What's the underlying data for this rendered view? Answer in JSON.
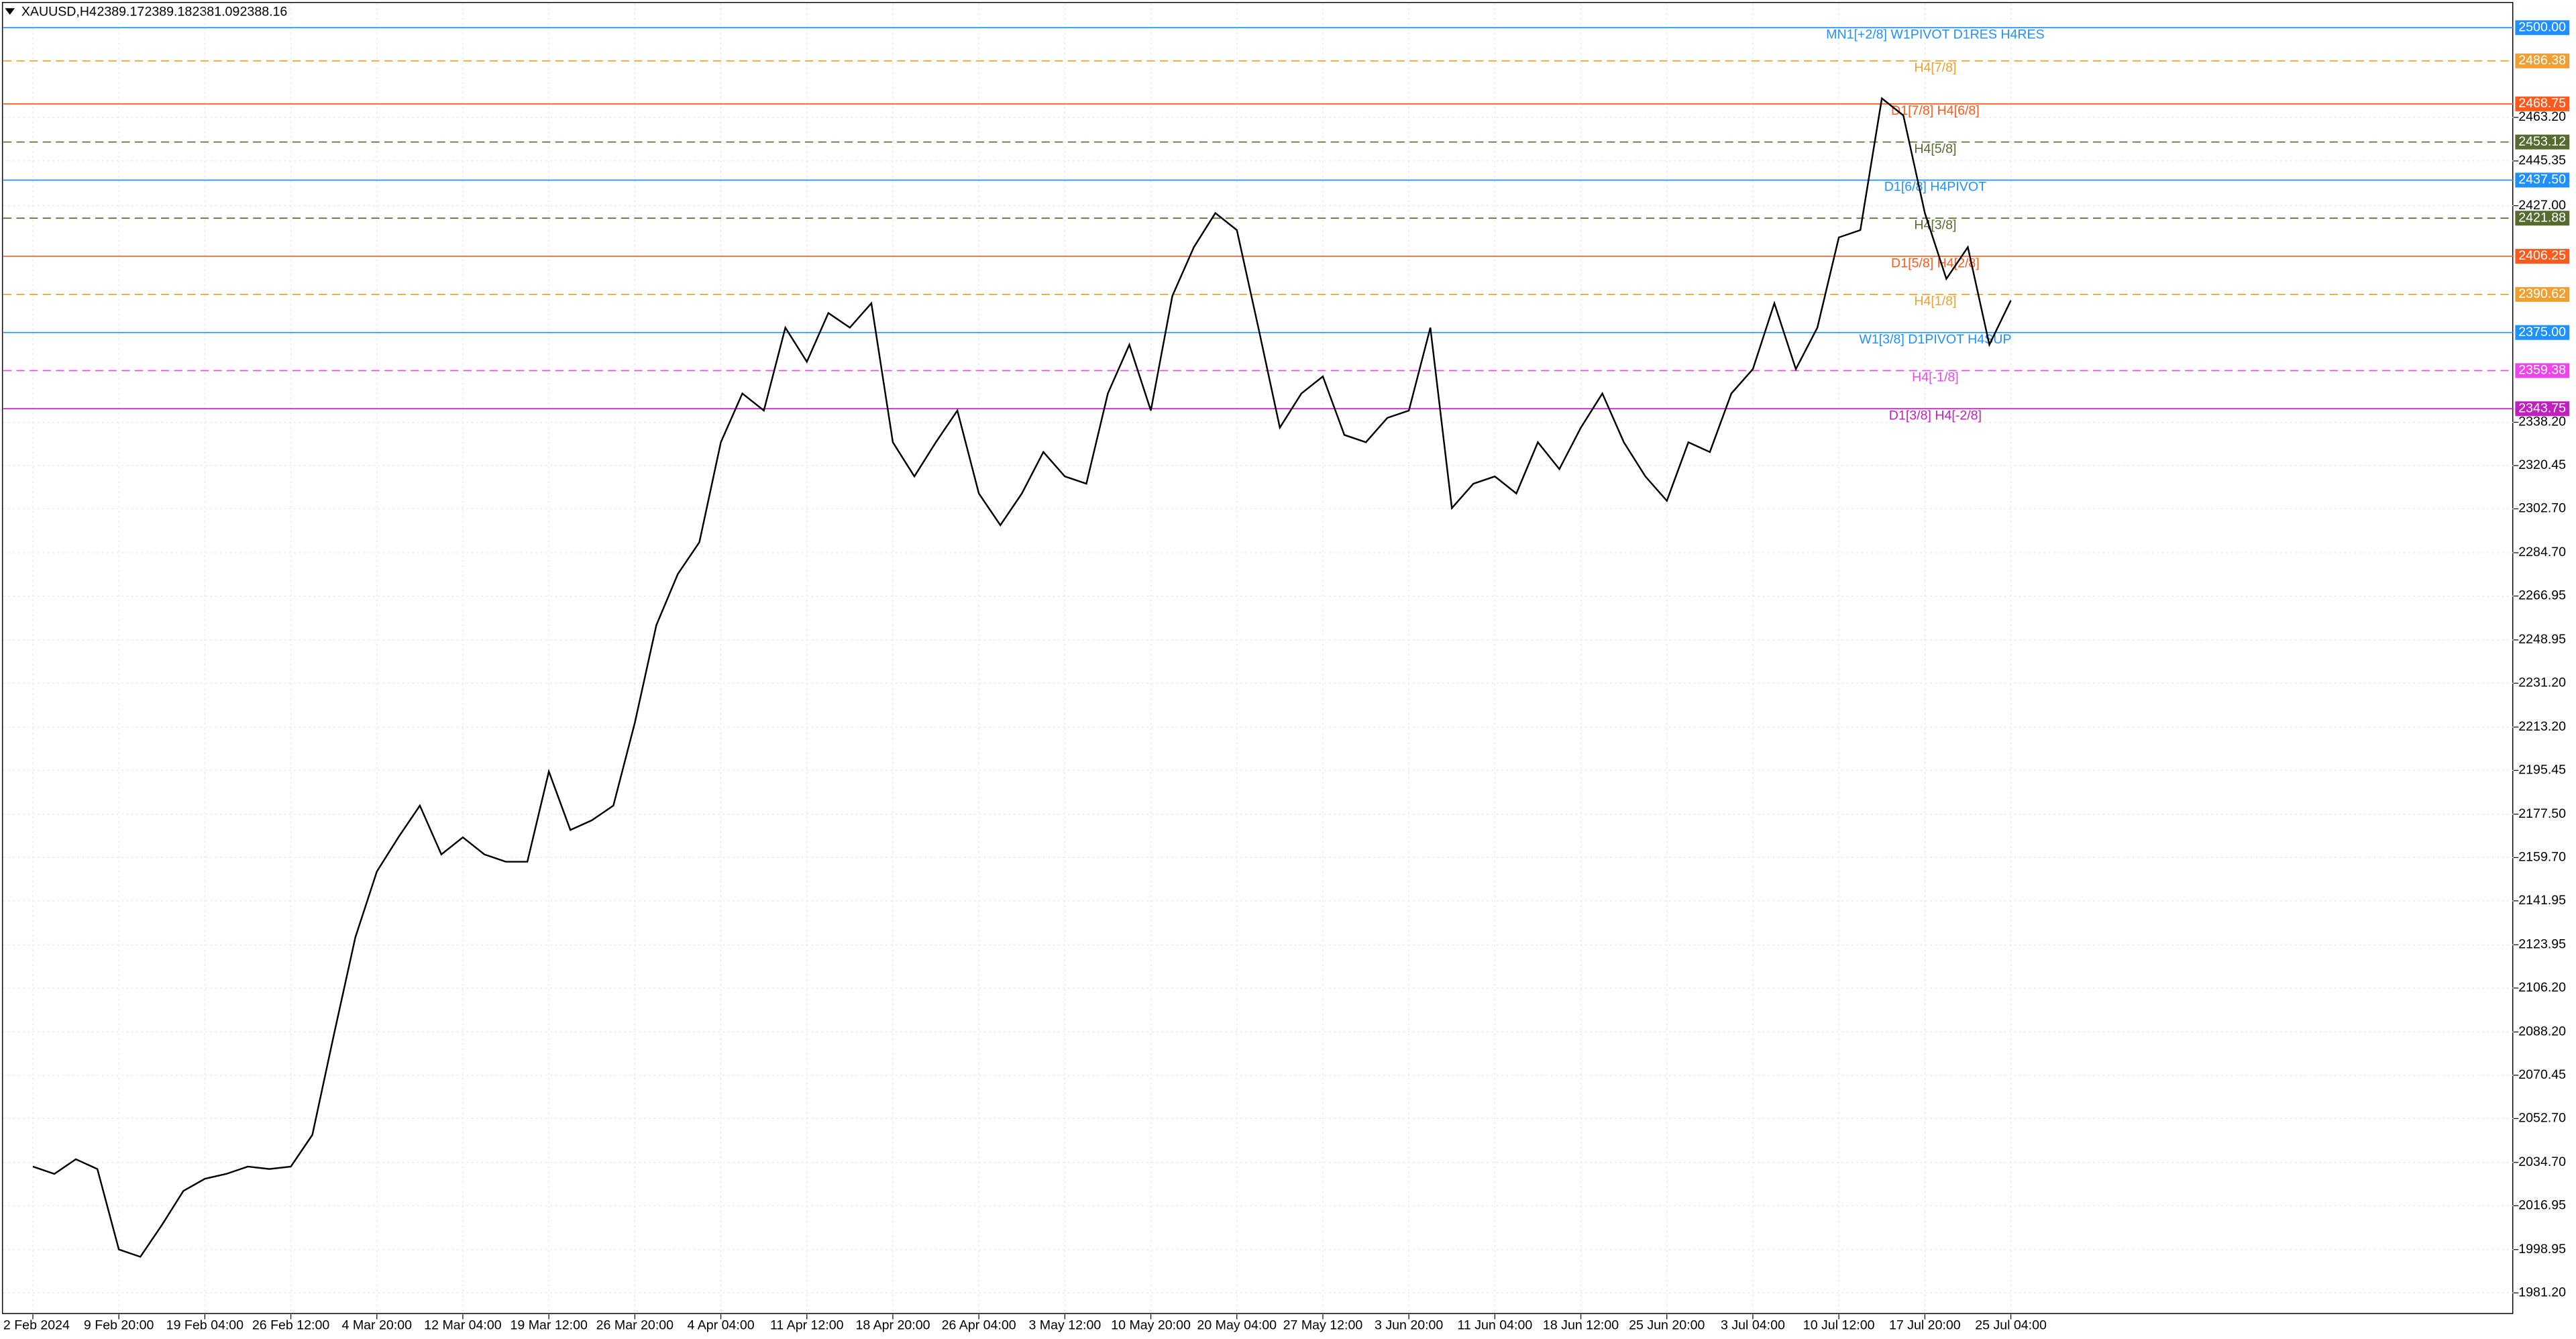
{
  "chart_data": {
    "type": "line",
    "symbol": "XAUUSD,H4",
    "ohlc": [
      2389.17,
      2389.18,
      2381.09,
      2388.16
    ],
    "color": "#000000",
    "categories": [
      "2 Feb 2024",
      null,
      null,
      null,
      "9 Feb 20:00",
      null,
      null,
      null,
      "19 Feb 04:00",
      null,
      null,
      null,
      "26 Feb 12:00",
      null,
      null,
      null,
      "4 Mar 20:00",
      null,
      null,
      null,
      "12 Mar 04:00",
      null,
      null,
      null,
      "19 Mar 12:00",
      null,
      null,
      null,
      "26 Mar 20:00",
      null,
      null,
      null,
      "4 Apr 04:00",
      null,
      null,
      null,
      "11 Apr 12:00",
      null,
      null,
      null,
      "18 Apr 20:00",
      null,
      null,
      null,
      "26 Apr 04:00",
      null,
      null,
      null,
      "3 May 12:00",
      null,
      null,
      null,
      "10 May 20:00",
      null,
      null,
      null,
      "20 May 04:00",
      null,
      null,
      null,
      "27 May 12:00",
      null,
      null,
      null,
      "3 Jun 20:00",
      null,
      null,
      null,
      "11 Jun 04:00",
      null,
      null,
      null,
      "18 Jun 12:00",
      null,
      null,
      null,
      "25 Jun 20:00",
      null,
      null,
      null,
      "3 Jul 04:00",
      null,
      null,
      null,
      "10 Jul 12:00",
      null,
      null,
      null,
      "17 Jul 20:00",
      null,
      null,
      null,
      "25 Jul 04:00"
    ],
    "values": [
      2033,
      2030,
      2036,
      2032,
      1999,
      1996,
      2009,
      2023,
      2028,
      2030,
      2033,
      2032,
      2033,
      2046,
      2087,
      2127,
      2154,
      2168,
      2181,
      2161,
      2168,
      2161,
      2158,
      2158,
      2195,
      2171,
      2175,
      2181,
      2215,
      2255,
      2276,
      2289,
      2330,
      2350,
      2343,
      2377,
      2363,
      2383,
      2377,
      2387,
      2330,
      2316,
      2330,
      2343,
      2309,
      2296,
      2309,
      2326,
      2316,
      2313,
      2350,
      2370,
      2343,
      2390,
      2410,
      2424,
      2417,
      2377,
      2336,
      2350,
      2357,
      2333,
      2330,
      2340,
      2343,
      2377,
      2303,
      2313,
      2316,
      2309,
      2330,
      2319,
      2336,
      2350,
      2330,
      2316,
      2306,
      2330,
      2326,
      2350,
      2360,
      2387,
      2360,
      2377,
      2414,
      2417,
      2471,
      2464,
      2424,
      2397,
      2410,
      2370,
      2388.16
    ],
    "ylim": [
      1972.4,
      2510
    ],
    "yticks": [
      {
        "value": 2463.2,
        "label": "2463.20"
      },
      {
        "value": 2445.35,
        "label": "2445.35"
      },
      {
        "value": 2427,
        "label": "2427.00"
      },
      {
        "value": 2338.2,
        "label": "2338.20"
      },
      {
        "value": 2320.45,
        "label": "2320.45"
      },
      {
        "value": 2302.7,
        "label": "2302.70"
      },
      {
        "value": 2284.7,
        "label": "2284.70"
      },
      {
        "value": 2266.95,
        "label": "2266.95"
      },
      {
        "value": 2248.95,
        "label": "2248.95"
      },
      {
        "value": 2231.2,
        "label": "2231.20"
      },
      {
        "value": 2213.2,
        "label": "2213.20"
      },
      {
        "value": 2195.45,
        "label": "2195.45"
      },
      {
        "value": 2177.5,
        "label": "2177.50"
      },
      {
        "value": 2159.7,
        "label": "2159.70"
      },
      {
        "value": 2141.95,
        "label": "2141.95"
      },
      {
        "value": 2123.95,
        "label": "2123.95"
      },
      {
        "value": 2106.2,
        "label": "2106.20"
      },
      {
        "value": 2088.2,
        "label": "2088.20"
      },
      {
        "value": 2070.45,
        "label": "2070.45"
      },
      {
        "value": 2052.7,
        "label": "2052.70"
      },
      {
        "value": 2034.7,
        "label": "2034.70"
      },
      {
        "value": 2016.95,
        "label": "2016.95"
      },
      {
        "value": 1998.95,
        "label": "1998.95"
      },
      {
        "value": 1981.2,
        "label": "1981.20"
      }
    ],
    "grid": true,
    "levels": {
      "values": [
        2500,
        2486.38,
        2468.75,
        2453.12,
        2437.5,
        2421.88,
        2406.25,
        2390.62,
        2375,
        2359.38,
        2343.75
      ],
      "value_labels": [
        "2500.00",
        "2486.38",
        "2468.75",
        "2453.12",
        "2437.50",
        "2421.88",
        "2406.25",
        "2390.62",
        "2375.00",
        "2359.38",
        "2343.75"
      ],
      "names": [
        "MN1[+2/8] W1PIVOT D1RES H4RES",
        "H4[7/8]",
        "D1[7/8] H4[6/8]",
        "H4[5/8]",
        "D1[6/8] H4PIVOT",
        "H4[3/8]",
        "D1[5/8] H4[2/8]",
        "H4[1/8]",
        "W1[3/8] D1PIVOT H4SUP",
        "H4[-1/8]",
        "D1[3/8] H4[-2/8]"
      ],
      "colors": [
        "#1e90ff",
        "#f0a030",
        "#ff5a1e",
        "#556b2f",
        "#1e90ff",
        "#556b2f",
        "#ff5a1e",
        "#f0a030",
        "#1e90ff",
        "#ee44ee",
        "#c020c0"
      ],
      "dashed": [
        false,
        true,
        false,
        true,
        false,
        true,
        false,
        true,
        false,
        true,
        false
      ]
    }
  }
}
